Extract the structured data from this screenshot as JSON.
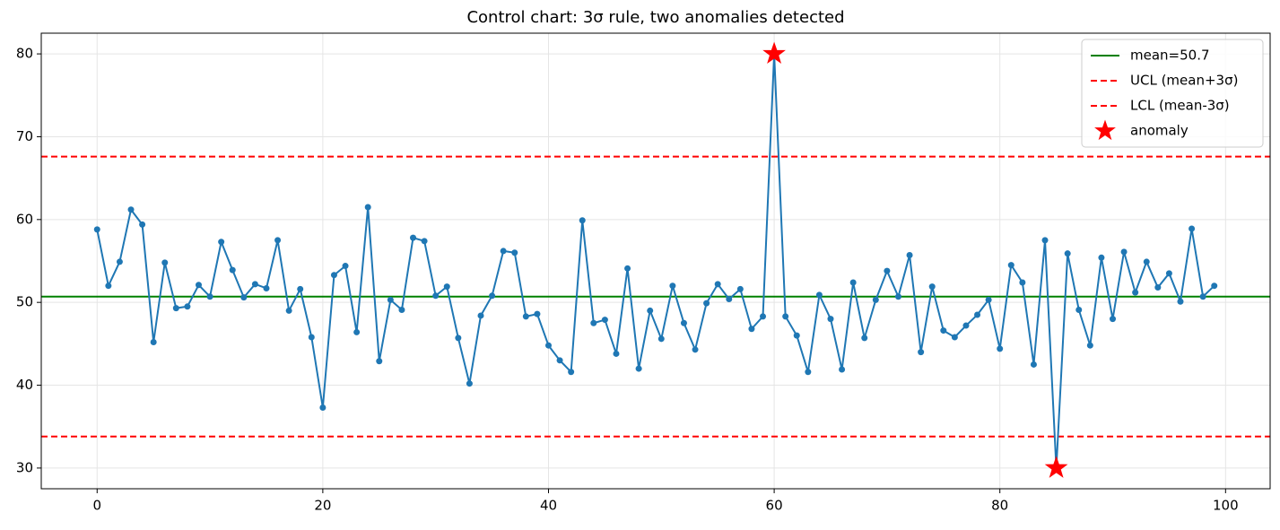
{
  "chart_data": {
    "type": "line",
    "title": "Control chart: 3σ rule, two anomalies detected",
    "x": [
      0,
      1,
      2,
      3,
      4,
      5,
      6,
      7,
      8,
      9,
      10,
      11,
      12,
      13,
      14,
      15,
      16,
      17,
      18,
      19,
      20,
      21,
      22,
      23,
      24,
      25,
      26,
      27,
      28,
      29,
      30,
      31,
      32,
      33,
      34,
      35,
      36,
      37,
      38,
      39,
      40,
      41,
      42,
      43,
      44,
      45,
      46,
      47,
      48,
      49,
      50,
      51,
      52,
      53,
      54,
      55,
      56,
      57,
      58,
      59,
      60,
      61,
      62,
      63,
      64,
      65,
      66,
      67,
      68,
      69,
      70,
      71,
      72,
      73,
      74,
      75,
      76,
      77,
      78,
      79,
      80,
      81,
      82,
      83,
      84,
      85,
      86,
      87,
      88,
      89,
      90,
      91,
      92,
      93,
      94,
      95,
      96,
      97,
      98,
      99
    ],
    "series": [
      {
        "color": "#1f77b4",
        "values": [
          58.8,
          52.0,
          54.9,
          61.2,
          59.4,
          45.2,
          54.8,
          49.3,
          49.5,
          52.1,
          50.7,
          57.3,
          53.9,
          50.6,
          52.2,
          51.7,
          57.5,
          49.0,
          51.6,
          45.8,
          37.3,
          53.3,
          54.4,
          46.4,
          61.5,
          42.9,
          50.3,
          49.1,
          57.8,
          57.4,
          50.8,
          51.9,
          45.7,
          40.2,
          48.4,
          50.8,
          56.2,
          56.0,
          48.3,
          48.6,
          44.8,
          43.0,
          41.6,
          59.9,
          47.5,
          47.9,
          43.8,
          54.1,
          42.0,
          49.0,
          45.6,
          52.0,
          47.5,
          44.3,
          49.9,
          52.2,
          50.4,
          51.6,
          46.8,
          48.3,
          80,
          48.3,
          46.0,
          41.6,
          50.9,
          48.0,
          41.9,
          52.4,
          45.7,
          50.3,
          53.8,
          50.7,
          55.7,
          44.0,
          51.9,
          46.6,
          45.8,
          47.2,
          48.5,
          50.3,
          44.4,
          54.5,
          52.4,
          42.5,
          57.5,
          30,
          55.9,
          49.1,
          44.8,
          55.4,
          48.0,
          56.1,
          51.2,
          54.9,
          51.8,
          53.5,
          50.1,
          58.9,
          50.7,
          52.0
        ]
      }
    ],
    "hlines": [
      {
        "name": "mean=50.7",
        "value": 50.7,
        "color": "#008000",
        "dashed": false
      },
      {
        "name": "UCL (mean+3σ)",
        "value": 67.6,
        "color": "#ff0000",
        "dashed": true
      },
      {
        "name": "LCL (mean-3σ)",
        "value": 33.8,
        "color": "#ff0000",
        "dashed": true
      }
    ],
    "anomalies": {
      "name": "anomaly",
      "color": "#ff0000",
      "x": [
        60,
        85
      ],
      "values": [
        80,
        30
      ]
    },
    "xlim": [
      -4.95,
      103.95
    ],
    "xticks": [
      0,
      20,
      40,
      60,
      80,
      100
    ],
    "ylim": [
      27.5,
      82.5
    ],
    "yticks": [
      30,
      40,
      50,
      60,
      70,
      80
    ],
    "grid": true,
    "legend": "upper right"
  }
}
